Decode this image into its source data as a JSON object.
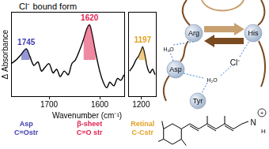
{
  "chart_data": [
    {
      "type": "line",
      "title": "Cl⁻ bound form",
      "ylabel": "Δ Absorbance",
      "xlabel": "Wavenumber (cm⁻¹)",
      "x": [
        1775,
        1765,
        1755,
        1745,
        1738,
        1730,
        1722,
        1715,
        1708,
        1700,
        1692,
        1685,
        1678,
        1670,
        1662,
        1655,
        1648,
        1640,
        1632,
        1625,
        1620,
        1615,
        1608,
        1600,
        1593,
        1586,
        1580,
        1572,
        1565,
        1558,
        1552
      ],
      "values": [
        -0.1,
        0.0,
        0.15,
        0.3,
        0.1,
        -0.15,
        -0.05,
        -0.3,
        -0.2,
        -0.1,
        -0.35,
        -0.25,
        -0.45,
        -0.3,
        -0.4,
        -0.1,
        0.0,
        0.25,
        0.55,
        0.85,
        0.95,
        0.7,
        0.2,
        -0.3,
        -0.6,
        -0.75,
        -0.6,
        -0.7,
        -0.5,
        -0.55,
        -0.4
      ],
      "color": "#000000",
      "xlim": [
        1775,
        1550
      ],
      "xticks": [
        1700,
        1600
      ],
      "ylim": [
        -1,
        1.3
      ],
      "tick_labels": "x",
      "grid": false,
      "annotations": [
        {
          "x": 1745,
          "color": "#3c3cae",
          "text": [
            "Asp",
            "C=Ostr"
          ]
        },
        {
          "x": 1620,
          "color": "#e0214f",
          "text": [
            "β-sheet",
            "C=O str"
          ]
        }
      ]
    },
    {
      "type": "line",
      "x": [
        1222,
        1215,
        1210,
        1205,
        1200,
        1197,
        1193,
        1188,
        1183,
        1178,
        1173
      ],
      "values": [
        -0.3,
        -0.15,
        0.0,
        0.1,
        0.25,
        0.35,
        0.15,
        -0.2,
        -0.35,
        -0.25,
        -0.4
      ],
      "color": "#000000",
      "xlim": [
        1225,
        1170
      ],
      "xticks": [
        1200
      ],
      "ylim": [
        -1,
        1.3
      ],
      "tick_labels": "x",
      "grid": false,
      "annotations": [
        {
          "x": 1197,
          "color": "#e3a024",
          "text": [
            "Retinal",
            "C-Cstr"
          ]
        }
      ]
    }
  ],
  "diagram": {
    "nodes": [
      {
        "label": "Arg"
      },
      {
        "label": "His"
      },
      {
        "label": "Asp"
      },
      {
        "label": "Tyr"
      },
      {
        "label": "H₂O"
      },
      {
        "label": "H₂O"
      },
      {
        "label": "Cl⁻"
      },
      {
        "label": "N"
      },
      {
        "label": "+"
      },
      {
        "label": "H"
      }
    ]
  }
}
